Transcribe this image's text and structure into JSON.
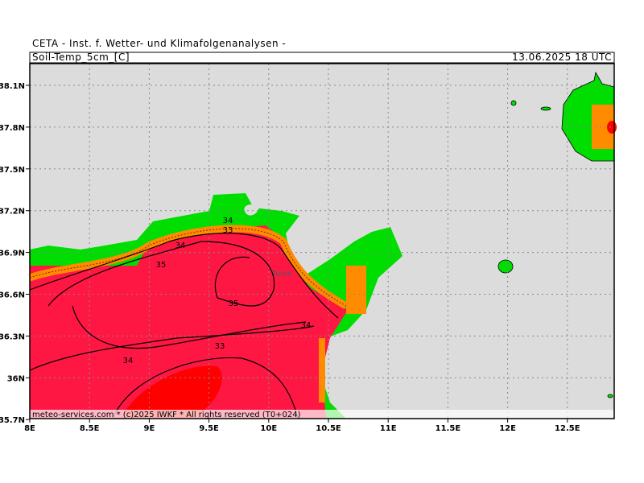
{
  "header": {
    "title": "CETA - Inst. f. Wetter- und Klimafolgenanalysen -",
    "variable": "Soil-Temp_5cm_[C]",
    "datetime": "13.06.2025 18 UTC"
  },
  "axes": {
    "longitudes": [
      "8E",
      "8.5E",
      "9E",
      "9.5E",
      "10E",
      "10.5E",
      "11E",
      "11.5E",
      "12E",
      "12.5E"
    ],
    "latitudes": [
      "38.1N",
      "37.8N",
      "37.5N",
      "37.2N",
      "36.9N",
      "36.6N",
      "36.3N",
      "36N",
      "35.7N"
    ]
  },
  "contours": [
    "34",
    "35",
    "35",
    "33",
    "34",
    "34",
    "33",
    "34"
  ],
  "place": "Tunis",
  "footer": "meteo-services.com * (c)2025 IWKF * All rights reserved (T0+024)"
}
